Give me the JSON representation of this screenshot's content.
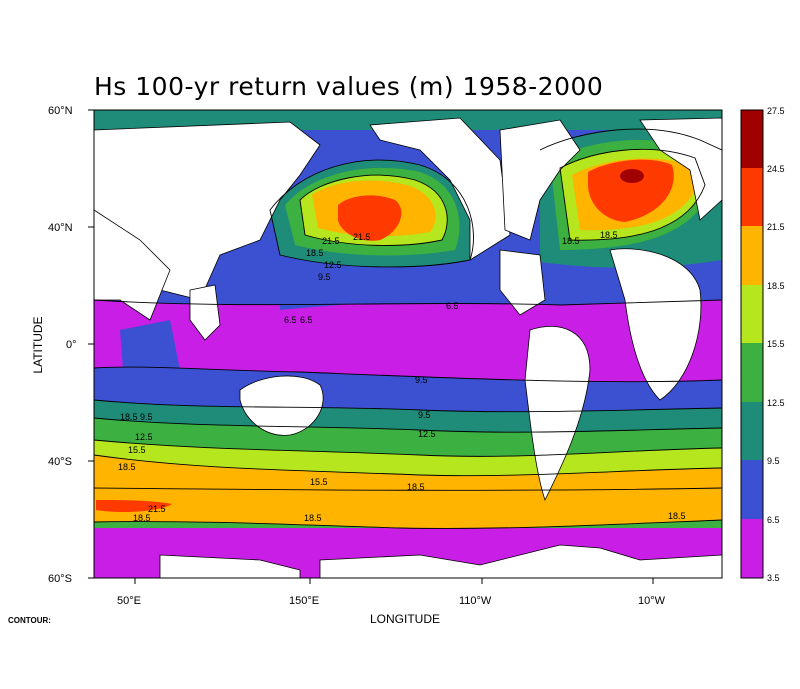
{
  "title": "Hs 100-yr return values (m) 1958-2000",
  "xlabel": "LONGITUDE",
  "ylabel": "LATITUDE",
  "contour_label": "CONTOUR:",
  "x_ticks": [
    "50°E",
    "150°E",
    "110°W",
    "10°W"
  ],
  "y_ticks": [
    "60°N",
    "40°N",
    "0°",
    "40°S",
    "60°S"
  ],
  "colorbar": {
    "levels": [
      "27.5",
      "24.5",
      "21.5",
      "18.5",
      "15.5",
      "12.5",
      "9.5",
      "6.5",
      "3.5"
    ],
    "colors": [
      "#a00000",
      "#ff3a00",
      "#ffb400",
      "#b6e61e",
      "#3cb040",
      "#1e8c78",
      "#3c50d2",
      "#c81ee6"
    ]
  },
  "contour_labels": [
    "21.5",
    "18.5",
    "12.5",
    "9.5",
    "6.5",
    "9.5",
    "18.5",
    "6.5",
    "9.5",
    "9.5",
    "12.5",
    "15.5",
    "12.5",
    "15.5",
    "18.5",
    "18.5",
    "21.5",
    "18.5",
    "18.5",
    "18.5",
    "18.5",
    "18.5",
    "6.5",
    "21.5"
  ]
}
